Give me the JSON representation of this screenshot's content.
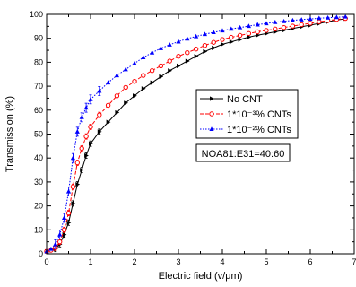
{
  "chart_data": {
    "type": "line",
    "xlabel": "Electric field (v/μm)",
    "ylabel": "Transmission (%)",
    "xlim": [
      0,
      7
    ],
    "ylim": [
      0,
      100
    ],
    "xticks": [
      "0",
      "1",
      "2",
      "3",
      "4",
      "5",
      "6",
      "7"
    ],
    "yticks": [
      "0",
      "10",
      "20",
      "30",
      "40",
      "50",
      "60",
      "70",
      "80",
      "90",
      "100"
    ],
    "annotation": "NOA81:E31=40:60",
    "legend_position": "center-right",
    "series": [
      {
        "name": "No CNT",
        "color": "#000000",
        "marker": "triangle-right",
        "line": "solid",
        "x": [
          0.0,
          0.1,
          0.2,
          0.3,
          0.4,
          0.5,
          0.6,
          0.7,
          0.8,
          0.9,
          1.0,
          1.2,
          1.4,
          1.6,
          1.8,
          2.0,
          2.2,
          2.4,
          2.6,
          2.8,
          3.0,
          3.2,
          3.4,
          3.6,
          3.8,
          4.0,
          4.2,
          4.4,
          4.6,
          4.8,
          5.0,
          5.2,
          5.4,
          5.6,
          5.8,
          6.0,
          6.2,
          6.4,
          6.6,
          6.8
        ],
        "y": [
          1,
          1.5,
          2,
          4,
          8,
          13,
          21,
          29,
          35,
          41,
          46,
          51,
          55,
          59,
          63,
          66,
          69,
          71.5,
          74,
          76.5,
          78.5,
          80.5,
          82.5,
          84.5,
          86,
          87.5,
          88.5,
          89.5,
          90.5,
          91.3,
          92,
          92.7,
          93.4,
          94.1,
          94.8,
          95.5,
          96.2,
          96.9,
          97.6,
          98.2
        ]
      },
      {
        "name": "1*10⁻³% CNTs",
        "color": "#ff0000",
        "marker": "circle",
        "line": "dashed",
        "x": [
          0.0,
          0.1,
          0.2,
          0.3,
          0.4,
          0.5,
          0.6,
          0.7,
          0.8,
          0.9,
          1.0,
          1.2,
          1.4,
          1.6,
          1.8,
          2.0,
          2.2,
          2.4,
          2.6,
          2.8,
          3.0,
          3.2,
          3.4,
          3.6,
          3.8,
          4.0,
          4.2,
          4.4,
          4.6,
          4.8,
          5.0,
          5.2,
          5.4,
          5.6,
          5.8,
          6.0,
          6.2,
          6.4,
          6.6,
          6.8
        ],
        "y": [
          1,
          1.5,
          2.5,
          5,
          10,
          17,
          28,
          38,
          44,
          49,
          53,
          58,
          62,
          66,
          69.5,
          72,
          74.5,
          76.5,
          78.5,
          80.5,
          82.5,
          84,
          85.5,
          87,
          88.3,
          89.5,
          90.4,
          91.2,
          92,
          92.7,
          93.3,
          93.9,
          94.5,
          95.1,
          95.7,
          96.3,
          96.9,
          97.4,
          97.9,
          98.3
        ]
      },
      {
        "name": "1*10⁻²% CNTs",
        "color": "#0000ff",
        "marker": "triangle-up",
        "line": "dotted",
        "x": [
          0.0,
          0.1,
          0.2,
          0.3,
          0.4,
          0.5,
          0.6,
          0.7,
          0.8,
          0.9,
          1.0,
          1.2,
          1.4,
          1.6,
          1.8,
          2.0,
          2.2,
          2.4,
          2.6,
          2.8,
          3.0,
          3.2,
          3.4,
          3.6,
          3.8,
          4.0,
          4.2,
          4.4,
          4.6,
          4.8,
          5.0,
          5.2,
          5.4,
          5.6,
          5.8,
          6.0,
          6.2,
          6.4,
          6.6,
          6.8
        ],
        "y": [
          1,
          2,
          4,
          8,
          15,
          26,
          40,
          51,
          57,
          61,
          64.5,
          68,
          71.5,
          74.5,
          77,
          79.5,
          82,
          84,
          85.8,
          87.3,
          88.6,
          89.8,
          90.8,
          91.7,
          92.5,
          93.2,
          93.9,
          94.5,
          95.1,
          95.7,
          96.2,
          96.7,
          97.1,
          97.5,
          97.8,
          98.1,
          98.4,
          98.6,
          98.8,
          99
        ]
      }
    ]
  }
}
